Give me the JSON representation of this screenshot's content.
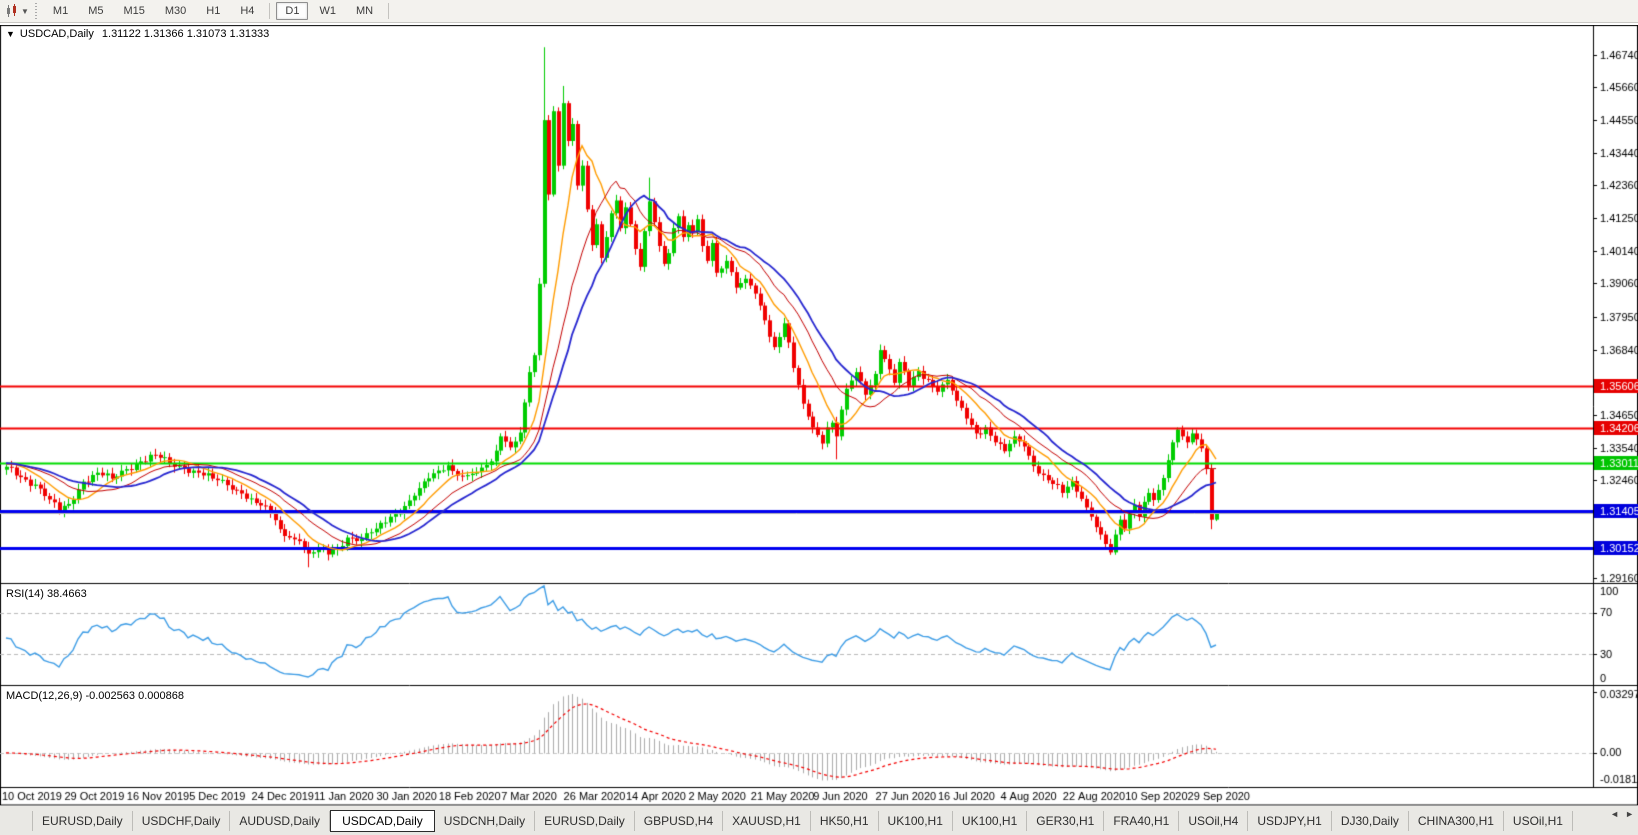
{
  "toolbar": {
    "chart_tools_icon": "candlestick-mini",
    "dropdown_caret": "▼",
    "timeframes": [
      "M1",
      "M5",
      "M15",
      "M30",
      "H1",
      "H4",
      "D1",
      "W1",
      "MN"
    ],
    "active_timeframe": "D1",
    "group_separators_after": [
      "H4",
      "MN"
    ]
  },
  "chart_window": {
    "window_menu_icon": "▼",
    "title": "USDCAD,Daily",
    "quote_text": "1.31122 1.31366 1.31073 1.31333",
    "rsi_label": "RSI(14) 38.4663",
    "macd_label": "MACD(12,26,9) -0.002563 0.000868"
  },
  "chart_data": {
    "type": "candlestick",
    "symbol": "USDCAD",
    "timeframe": "Daily",
    "current_bar": {
      "open": 1.31122,
      "high": 1.31366,
      "low": 1.31073,
      "close": 1.31333
    },
    "y_axis": {
      "max": 1.4674,
      "min": 1.2916,
      "tick_labels": [
        "1.46740",
        "1.45660",
        "1.44550",
        "1.43440",
        "1.42360",
        "1.41250",
        "1.40140",
        "1.39060",
        "1.37950",
        "1.36840",
        "1.34650",
        "1.33540",
        "1.32460",
        "1.29160"
      ]
    },
    "h_lines": [
      {
        "label": "1.35606",
        "price": 1.35606,
        "color": "#f40000",
        "box": "#e60000",
        "width": 2
      },
      {
        "label": "1.34206",
        "price": 1.34206,
        "color": "#f40000",
        "box": "#e60000",
        "width": 2
      },
      {
        "label": "1.33011",
        "price": 1.33011,
        "color": "#00dc00",
        "box": "#00c400",
        "width": 2
      },
      {
        "label": "1.31405",
        "price": 1.31405,
        "color": "#0000f0",
        "box": "#0000dc",
        "width": 3
      },
      {
        "label": "1.30152",
        "price": 1.30152,
        "color": "#0000f0",
        "box": "#0000dc",
        "width": 3
      }
    ],
    "current_price_line": {
      "label": "1.31333",
      "price": 1.31333,
      "line_color": "#b4b4b4",
      "box": "#000000"
    },
    "x_labels": [
      "10 Oct 2019",
      "29 Oct 2019",
      "16 Nov 2019",
      "5 Dec 2019",
      "24 Dec 2019",
      "11 Jan 2020",
      "30 Jan 2020",
      "18 Feb 2020",
      "7 Mar 2020",
      "26 Mar 2020",
      "14 Apr 2020",
      "2 May 2020",
      "21 May 2020",
      "9 Jun 2020",
      "27 Jun 2020",
      "16 Jul 2020",
      "4 Aug 2020",
      "22 Aug 2020",
      "10 Sep 2020",
      "29 Sep 2020"
    ],
    "bars_per_label": 13,
    "up_color": "#00cc00",
    "down_color": "#f00000",
    "price_anchors": [
      [
        0,
        1.329
      ],
      [
        3,
        1.3255
      ],
      [
        6,
        1.323
      ],
      [
        9,
        1.318
      ],
      [
        11,
        1.314
      ],
      [
        13,
        1.3165
      ],
      [
        16,
        1.324
      ],
      [
        19,
        1.327
      ],
      [
        22,
        1.325
      ],
      [
        25,
        1.3282
      ],
      [
        28,
        1.3308
      ],
      [
        31,
        1.333
      ],
      [
        34,
        1.33
      ],
      [
        37,
        1.3285
      ],
      [
        40,
        1.327
      ],
      [
        43,
        1.325
      ],
      [
        46,
        1.3228
      ],
      [
        49,
        1.32
      ],
      [
        52,
        1.3168
      ],
      [
        55,
        1.3135
      ],
      [
        57,
        1.308
      ],
      [
        59,
        1.3052
      ],
      [
        61,
        1.304
      ],
      [
        63,
        1.2998
      ],
      [
        65,
        1.3012
      ],
      [
        67,
        1.2995
      ],
      [
        69,
        1.302
      ],
      [
        71,
        1.3052
      ],
      [
        74,
        1.3048
      ],
      [
        77,
        1.3082
      ],
      [
        80,
        1.3122
      ],
      [
        83,
        1.3158
      ],
      [
        86,
        1.3218
      ],
      [
        89,
        1.3268
      ],
      [
        92,
        1.3295
      ],
      [
        95,
        1.3258
      ],
      [
        98,
        1.3272
      ],
      [
        101,
        1.3308
      ],
      [
        103,
        1.3392
      ],
      [
        105,
        1.3355
      ],
      [
        107,
        1.3405
      ],
      [
        109,
        1.3608
      ],
      [
        110,
        1.3665
      ],
      [
        111,
        1.3905
      ],
      [
        112,
        1.4455
      ],
      [
        113,
        1.4205
      ],
      [
        114,
        1.4485
      ],
      [
        115,
        1.4302
      ],
      [
        116,
        1.4512
      ],
      [
        117,
        1.4385
      ],
      [
        118,
        1.4442
      ],
      [
        119,
        1.4235
      ],
      [
        120,
        1.4302
      ],
      [
        121,
        1.4155
      ],
      [
        122,
        1.4035
      ],
      [
        123,
        1.4105
      ],
      [
        124,
        1.3992
      ],
      [
        125,
        1.4062
      ],
      [
        126,
        1.4142
      ],
      [
        127,
        1.4185
      ],
      [
        128,
        1.4092
      ],
      [
        129,
        1.4162
      ],
      [
        130,
        1.4105
      ],
      [
        131,
        1.4022
      ],
      [
        132,
        1.3962
      ],
      [
        133,
        1.4082
      ],
      [
        134,
        1.4182
      ],
      [
        135,
        1.4112
      ],
      [
        136,
        1.4032
      ],
      [
        137,
        1.3972
      ],
      [
        138,
        1.4008
      ],
      [
        139,
        1.4092
      ],
      [
        140,
        1.4132
      ],
      [
        141,
        1.4062
      ],
      [
        142,
        1.4102
      ],
      [
        143,
        1.4078
      ],
      [
        144,
        1.4122
      ],
      [
        145,
        1.4032
      ],
      [
        146,
        1.3982
      ],
      [
        147,
        1.4042
      ],
      [
        148,
        1.3942
      ],
      [
        150,
        1.3982
      ],
      [
        152,
        1.3892
      ],
      [
        154,
        1.3922
      ],
      [
        156,
        1.3872
      ],
      [
        158,
        1.3782
      ],
      [
        160,
        1.3692
      ],
      [
        162,
        1.3772
      ],
      [
        164,
        1.3622
      ],
      [
        166,
        1.3502
      ],
      [
        168,
        1.3422
      ],
      [
        170,
        1.3368
      ],
      [
        171,
        1.3422
      ],
      [
        172,
        1.3438
      ],
      [
        173,
        1.3392
      ],
      [
        174,
        1.3482
      ],
      [
        175,
        1.3552
      ],
      [
        177,
        1.3608
      ],
      [
        179,
        1.3532
      ],
      [
        181,
        1.3602
      ],
      [
        182,
        1.3682
      ],
      [
        183,
        1.3652
      ],
      [
        185,
        1.3572
      ],
      [
        186,
        1.3642
      ],
      [
        188,
        1.3562
      ],
      [
        190,
        1.3612
      ],
      [
        192,
        1.3582
      ],
      [
        194,
        1.3542
      ],
      [
        196,
        1.3582
      ],
      [
        198,
        1.3512
      ],
      [
        200,
        1.3452
      ],
      [
        202,
        1.3402
      ],
      [
        204,
        1.3422
      ],
      [
        206,
        1.3372
      ],
      [
        208,
        1.3342
      ],
      [
        210,
        1.3392
      ],
      [
        212,
        1.3358
      ],
      [
        214,
        1.3292
      ],
      [
        216,
        1.3262
      ],
      [
        218,
        1.3232
      ],
      [
        220,
        1.3202
      ],
      [
        222,
        1.3242
      ],
      [
        224,
        1.3182
      ],
      [
        226,
        1.3122
      ],
      [
        228,
        1.3062
      ],
      [
        230,
        1.3002
      ],
      [
        231,
        1.3062
      ],
      [
        232,
        1.3112
      ],
      [
        233,
        1.3082
      ],
      [
        234,
        1.3132
      ],
      [
        235,
        1.3162
      ],
      [
        236,
        1.3122
      ],
      [
        237,
        1.3172
      ],
      [
        238,
        1.3202
      ],
      [
        239,
        1.3178
      ],
      [
        240,
        1.3212
      ],
      [
        241,
        1.3252
      ],
      [
        242,
        1.3312
      ],
      [
        243,
        1.3372
      ],
      [
        244,
        1.3415
      ],
      [
        245,
        1.3392
      ],
      [
        246,
        1.3372
      ],
      [
        247,
        1.3402
      ],
      [
        248,
        1.3382
      ],
      [
        249,
        1.3352
      ],
      [
        250,
        1.3282
      ],
      [
        251,
        1.3112
      ],
      [
        252,
        1.31333
      ]
    ],
    "high_overrides": {
      "112": 1.47,
      "116": 1.457,
      "134": 1.4262,
      "244": 1.3422
    },
    "low_overrides": {
      "63": 1.2952,
      "173": 1.3315,
      "230": 1.2994,
      "251": 1.308
    },
    "ma_lines": [
      {
        "name": "ma-fast",
        "period": 9,
        "color": "#ff9c00",
        "width": 1.4
      },
      {
        "name": "ma-mid",
        "period": 16,
        "color": "#c40000",
        "width": 1
      },
      {
        "name": "ma-slow",
        "period": 22,
        "color": "#2626d0",
        "width": 1.8
      }
    ],
    "rsi": {
      "period": 14,
      "current": 38.4663,
      "color": "#3e9de6",
      "axis_labels": [
        "100",
        "70",
        "30",
        "0"
      ],
      "axis_values": [
        100,
        70,
        30,
        0
      ],
      "dashed_levels": [
        70,
        30
      ],
      "range": [
        0,
        100
      ]
    },
    "macd": {
      "fast": 12,
      "slow": 26,
      "signal_period": 9,
      "current_main": -0.002563,
      "current_signal": 0.000868,
      "axis_labels": [
        "0.032972",
        "0.00",
        "-0.018154"
      ],
      "axis_values": [
        0.032972,
        0,
        -0.018154
      ],
      "range": [
        -0.018154,
        0.032972
      ],
      "hist_color": "#ababab",
      "signal_color": "#f40000"
    }
  },
  "tabs": {
    "items": [
      "EURUSD,Daily",
      "USDCHF,Daily",
      "AUDUSD,Daily",
      "USDCAD,Daily",
      "USDCNH,Daily",
      "EURUSD,Daily",
      "GBPUSD,H4",
      "XAUUSD,H1",
      "HK50,H1",
      "UK100,H1",
      "UK100,H1",
      "GER30,H1",
      "FRA40,H1",
      "USOil,H4",
      "USDJPY,H1",
      "DJ30,Daily",
      "CHINA300,H1",
      "USOil,H1"
    ],
    "active_index": 3,
    "scroll_left_icon": "◄",
    "scroll_right_icon": "►"
  }
}
